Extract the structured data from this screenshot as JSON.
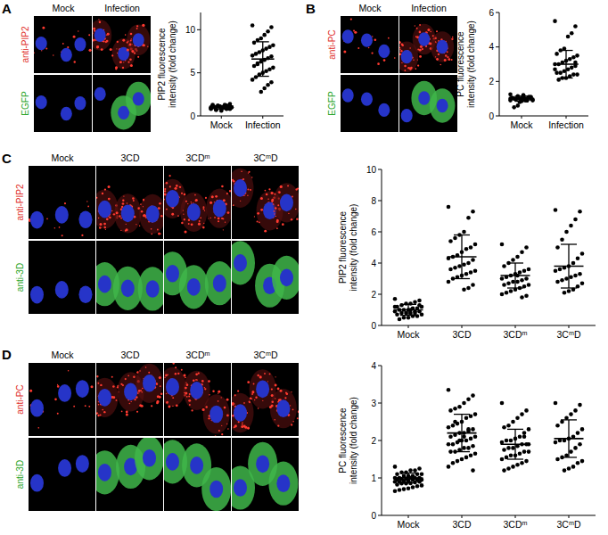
{
  "chart_data": [
    {
      "type": "dot_plot",
      "ylabel": [
        "PIP2 fluorescence",
        "intensity (fold change)"
      ],
      "categories": [
        "Mock",
        "Infection"
      ],
      "color": "#000000",
      "values": [
        [
          1.0,
          0.8,
          1.2,
          0.9,
          1.1,
          0.7,
          1.3,
          1.0,
          0.9,
          1.1,
          0.6,
          1.2,
          1.0,
          0.8,
          1.4,
          0.9,
          1.0,
          1.1,
          0.7,
          1.2,
          1.0,
          0.9,
          1.3,
          0.8,
          1.1,
          1.0,
          0.9,
          1.2,
          0.8,
          1.0
        ],
        [
          10.5,
          10.3,
          9.8,
          9.4,
          9.0,
          8.8,
          8.5,
          8.2,
          8.0,
          7.8,
          7.6,
          7.4,
          7.2,
          7.0,
          6.9,
          6.7,
          6.5,
          6.3,
          6.0,
          5.8,
          5.6,
          5.4,
          5.2,
          5.0,
          4.8,
          4.5,
          4.2,
          3.9,
          3.6,
          3.2,
          2.8,
          6.1
        ]
      ],
      "mean": [
        1.0,
        6.6
      ],
      "sd": [
        0.2,
        2.0
      ],
      "ylim": [
        0,
        12
      ],
      "yticks": [
        0,
        5,
        10
      ]
    },
    {
      "type": "dot_plot",
      "ylabel": [
        "PC fluorescence",
        "intensity (fold change)"
      ],
      "categories": [
        "Mock",
        "Infection"
      ],
      "color": "#000000",
      "values": [
        [
          1.0,
          1.1,
          0.9,
          1.2,
          1.0,
          0.95,
          1.05,
          0.9,
          1.1,
          1.0,
          0.85,
          1.15,
          1.0,
          0.9,
          1.1,
          1.0,
          1.2,
          0.8,
          1.0,
          1.05,
          0.95,
          1.1,
          0.9,
          1.0,
          0.6,
          0.5,
          1.25,
          1.0,
          0.9,
          1.1
        ],
        [
          5.5,
          5.2,
          4.8,
          4.6,
          3.9,
          3.8,
          3.6,
          3.5,
          3.4,
          3.3,
          3.2,
          3.1,
          3.0,
          3.0,
          2.9,
          2.8,
          2.7,
          2.6,
          2.5,
          2.5,
          2.4,
          2.4,
          2.3,
          2.2,
          2.2,
          2.1,
          2.7,
          3.1
        ]
      ],
      "mean": [
        1.0,
        3.0
      ],
      "sd": [
        0.15,
        0.8
      ],
      "ylim": [
        0,
        6
      ],
      "yticks": [
        0,
        2,
        4,
        6
      ]
    },
    {
      "type": "dot_plot",
      "ylabel": [
        "PIP2 fluorescence",
        "intensity (fold change)"
      ],
      "categories": [
        "Mock",
        "3CD",
        "3CDᵐ",
        "3CᵐD"
      ],
      "color": "#000000",
      "values": [
        [
          1.7,
          1.6,
          1.5,
          1.4,
          1.4,
          1.3,
          1.2,
          1.2,
          1.1,
          1.1,
          1.0,
          1.0,
          1.0,
          0.9,
          0.9,
          0.9,
          0.8,
          0.8,
          0.8,
          0.7,
          0.7,
          0.6,
          0.6,
          0.5,
          0.5,
          0.4,
          1.2,
          1.3,
          0.8,
          1.0
        ],
        [
          7.6,
          7.3,
          6.9,
          6.0,
          5.8,
          5.6,
          5.4,
          5.2,
          5.0,
          4.9,
          4.7,
          4.5,
          4.4,
          4.3,
          4.2,
          4.0,
          3.9,
          3.8,
          3.7,
          3.6,
          3.5,
          3.4,
          3.3,
          3.2,
          3.1,
          3.0,
          2.8,
          2.6,
          2.4,
          2.3
        ],
        [
          5.2,
          5.0,
          4.7,
          4.4,
          4.2,
          4.0,
          3.8,
          3.6,
          3.5,
          3.4,
          3.3,
          3.2,
          3.1,
          3.0,
          3.0,
          2.9,
          2.8,
          2.8,
          2.7,
          2.6,
          2.6,
          2.5,
          2.4,
          2.3,
          2.2,
          2.1,
          2.0,
          1.9,
          1.8,
          3.2
        ],
        [
          7.4,
          7.3,
          6.8,
          6.4,
          6.0,
          5.5,
          5.0,
          4.6,
          4.3,
          4.0,
          3.8,
          3.7,
          3.6,
          3.5,
          3.3,
          3.2,
          3.1,
          3.0,
          2.9,
          2.8,
          2.7,
          2.5,
          2.3,
          2.2,
          2.1
        ]
      ],
      "mean": [
        1.0,
        4.4,
        3.2,
        3.8
      ],
      "sd": [
        0.35,
        1.4,
        0.8,
        1.4
      ],
      "ylim": [
        0,
        10
      ],
      "yticks": [
        0,
        2,
        4,
        6,
        8,
        10
      ]
    },
    {
      "type": "dot_plot",
      "ylabel": [
        "PC fluorescence",
        "intensity (fold change)"
      ],
      "categories": [
        "Mock",
        "3CD",
        "3CDᵐ",
        "3CᵐD"
      ],
      "color": "#000000",
      "values": [
        [
          1.3,
          1.25,
          1.2,
          1.2,
          1.15,
          1.15,
          1.1,
          1.1,
          1.1,
          1.05,
          1.05,
          1.05,
          1.0,
          1.0,
          1.0,
          1.0,
          1.0,
          0.98,
          0.97,
          0.96,
          0.95,
          0.95,
          0.95,
          0.93,
          0.92,
          0.9,
          0.9,
          0.9,
          0.88,
          0.86,
          0.85,
          0.85,
          0.82,
          0.8,
          0.78,
          0.75,
          0.72,
          0.7,
          0.68,
          0.65
        ],
        [
          3.35,
          3.2,
          3.1,
          3.0,
          2.9,
          2.85,
          2.8,
          2.7,
          2.65,
          2.6,
          2.5,
          2.45,
          2.4,
          2.35,
          2.3,
          2.25,
          2.2,
          2.2,
          2.15,
          2.1,
          2.1,
          2.05,
          2.0,
          2.0,
          1.95,
          1.9,
          1.9,
          1.85,
          1.8,
          1.8,
          1.75,
          1.7,
          1.7,
          1.65,
          1.6,
          1.55,
          1.5,
          1.45,
          1.4,
          1.3,
          1.2,
          2.3,
          2.1,
          2.0,
          2.5
        ],
        [
          3.0,
          2.8,
          2.7,
          2.6,
          2.5,
          2.4,
          2.35,
          2.3,
          2.2,
          2.1,
          2.05,
          2.0,
          2.0,
          1.95,
          1.9,
          1.9,
          1.85,
          1.8,
          1.8,
          1.75,
          1.7,
          1.7,
          1.65,
          1.6,
          1.6,
          1.55,
          1.5,
          1.45,
          1.4,
          1.35,
          1.3,
          1.25,
          1.2,
          1.9,
          2.1
        ],
        [
          3.0,
          2.95,
          2.8,
          2.7,
          2.6,
          2.5,
          2.4,
          2.3,
          2.2,
          2.1,
          2.05,
          2.0,
          2.0,
          1.95,
          1.9,
          1.8,
          1.7,
          1.6,
          1.55,
          1.5,
          1.45,
          1.4,
          1.3,
          1.25,
          1.2
        ]
      ],
      "mean": [
        1.0,
        2.2,
        1.9,
        2.05
      ],
      "sd": [
        0.13,
        0.5,
        0.4,
        0.5
      ],
      "ylim": [
        0,
        4
      ],
      "yticks": [
        0,
        1,
        2,
        3,
        4
      ]
    }
  ],
  "image_panels": [
    {
      "letter": "A",
      "columns": [
        "Mock",
        "Infection"
      ],
      "rows": [
        "anti-PIP2",
        "EGFP"
      ]
    },
    {
      "letter": "B",
      "columns": [
        "Mock",
        "Infection"
      ],
      "rows": [
        "anti-PC",
        "EGFP"
      ]
    },
    {
      "letter": "C",
      "columns": [
        "Mock",
        "3CD",
        "3CDᵐ",
        "3CᵐD"
      ],
      "rows": [
        "anti-PIP2",
        "anti-3D"
      ]
    },
    {
      "letter": "D",
      "columns": [
        "Mock",
        "3CD",
        "3CDᵐ",
        "3CᵐD"
      ],
      "rows": [
        "anti-PC",
        "anti-3D"
      ]
    }
  ]
}
